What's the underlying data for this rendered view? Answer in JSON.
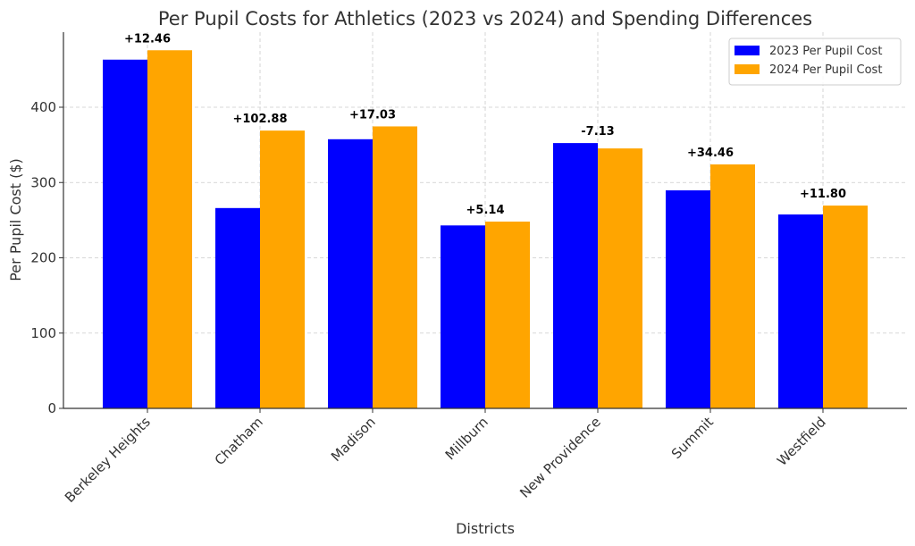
{
  "chart_data": {
    "type": "bar",
    "title": "Per Pupil Costs for Athletics (2023 vs 2024) and Spending Differences",
    "xlabel": "Districts",
    "ylabel": "Per Pupil Cost ($)",
    "ylim": [
      0,
      485
    ],
    "yticks": [
      0,
      100,
      200,
      300,
      400
    ],
    "grid": true,
    "legend_position": "top-right",
    "categories": [
      "Berkeley Heights",
      "Chatham",
      "Madison",
      "Millburn",
      "New Providence",
      "Summit",
      "Westfield"
    ],
    "series": [
      {
        "name": "2023 Per Pupil Cost",
        "color": "#0000ff",
        "values": [
          463.2,
          266.1,
          357.5,
          243.0,
          352.4,
          289.6,
          257.6
        ]
      },
      {
        "name": "2024 Per Pupil Cost",
        "color": "#ffa500",
        "values": [
          475.66,
          368.98,
          374.53,
          248.14,
          345.27,
          324.06,
          269.4
        ]
      }
    ],
    "annotations": [
      "+12.46",
      "+102.88",
      "+17.03",
      "+5.14",
      "-7.13",
      "+34.46",
      "+11.80"
    ]
  }
}
